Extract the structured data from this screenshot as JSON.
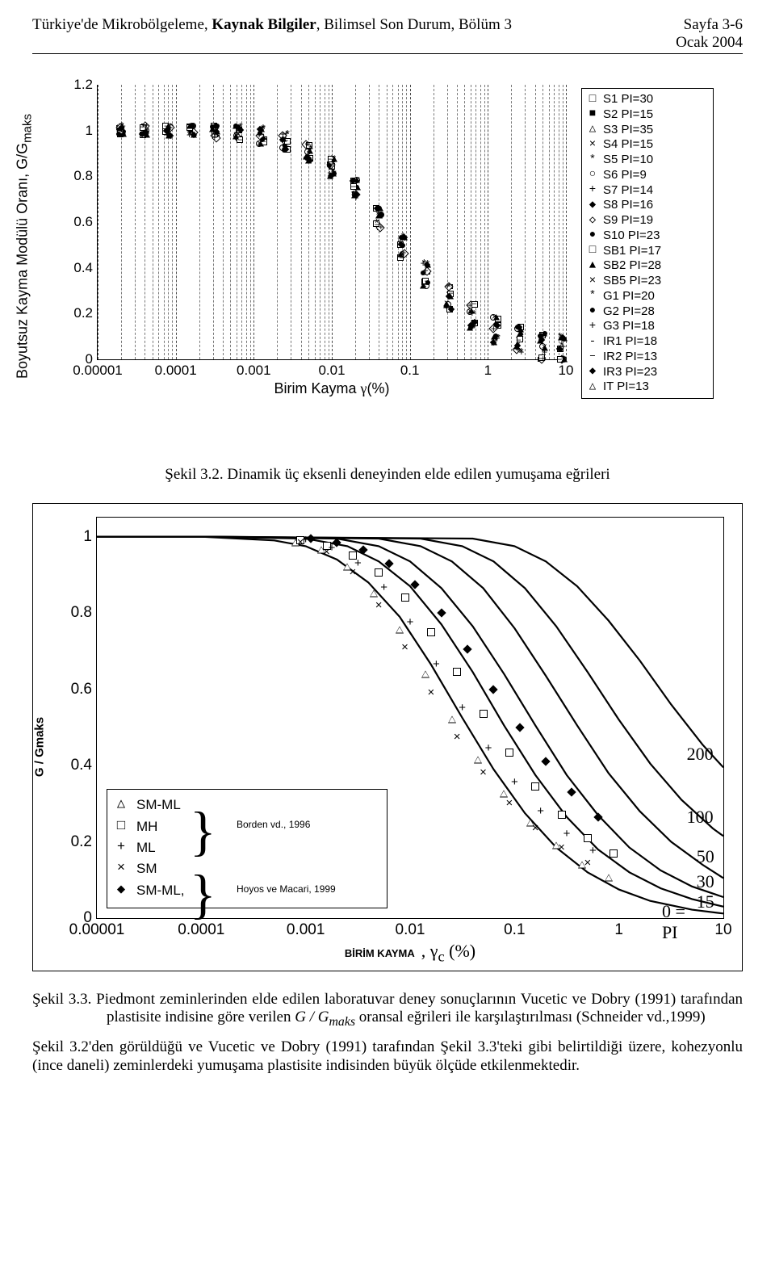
{
  "header": {
    "left_plain1": "Türkiye'de Mikrobölgeleme, ",
    "left_bold": "Kaynak Bilgiler",
    "left_plain2": ", Bilimsel Son Durum, Bölüm 3",
    "right_line1": "Sayfa 3-6",
    "right_line2": "Ocak 2004"
  },
  "chart1": {
    "type": "scatter-log",
    "ylabel_a": "Boyutsuz Kayma Modülü Oranı, G/G",
    "ylabel_sub": "maks",
    "xlabel_a": "Birim Kayma ",
    "xlabel_sym": "γ",
    "xlabel_b": "(%)",
    "ylim": [
      0,
      1.2
    ],
    "yticks": [
      0,
      0.2,
      0.4,
      0.6,
      0.8,
      1,
      1.2
    ],
    "ytick_labels": [
      "0",
      "0.2",
      "0.4",
      "0.6",
      "0.8",
      "1",
      "1.2"
    ],
    "xlim_log10": [
      -5,
      1
    ],
    "xticks_log10": [
      -5,
      -4,
      -3,
      -2,
      -1,
      0,
      1
    ],
    "xtick_labels": [
      "0.00001",
      "0.0001",
      "0.001",
      "0.01",
      "0.1",
      "1",
      "10"
    ],
    "grid_color": "#7a7a7a",
    "background_color": "#ffffff",
    "legend": [
      {
        "sym": "□",
        "label": "S1  PI=30"
      },
      {
        "sym": "■",
        "label": "S2  PI=15"
      },
      {
        "sym": "△",
        "label": "S3  PI=35"
      },
      {
        "sym": "×",
        "label": "S4  PI=15"
      },
      {
        "sym": "*",
        "label": "S5  PI=10"
      },
      {
        "sym": "○",
        "label": "S6  PI=9"
      },
      {
        "sym": "+",
        "label": "S7  PI=14"
      },
      {
        "sym": "◆",
        "label": "S8  PI=16"
      },
      {
        "sym": "◇",
        "label": "S9  PI=19"
      },
      {
        "sym": "●",
        "label": "S10 PI=23"
      },
      {
        "sym": "□",
        "label": "SB1 PI=17"
      },
      {
        "sym": "▲",
        "label": "SB2 PI=28"
      },
      {
        "sym": "×",
        "label": "SB5 PI=23"
      },
      {
        "sym": "*",
        "label": "G1  PI=20"
      },
      {
        "sym": "●",
        "label": "G2  PI=28"
      },
      {
        "sym": "+",
        "label": "G3  PI=18"
      },
      {
        "sym": "-",
        "label": "IR1 PI=18"
      },
      {
        "sym": "–",
        "label": "IR2 PI=13"
      },
      {
        "sym": "◆",
        "label": "IR3 PI=23"
      },
      {
        "sym": "△",
        "label": "IT PI=13"
      }
    ],
    "series_classes": [
      "square",
      "fsquare",
      "tri",
      "x",
      "star",
      "circ",
      "plus",
      "diam",
      "odiam",
      "fcirc",
      "square",
      "tri",
      "x",
      "star",
      "fcirc",
      "plus",
      "dash",
      "dash",
      "diam",
      "tri"
    ],
    "band_center": [
      [
        -4.7,
        1.0
      ],
      [
        -4.4,
        1.0
      ],
      [
        -4.1,
        1.0
      ],
      [
        -3.8,
        1.0
      ],
      [
        -3.5,
        0.995
      ],
      [
        -3.2,
        0.99
      ],
      [
        -2.9,
        0.975
      ],
      [
        -2.6,
        0.95
      ],
      [
        -2.3,
        0.905
      ],
      [
        -2.0,
        0.84
      ],
      [
        -1.7,
        0.745
      ],
      [
        -1.4,
        0.62
      ],
      [
        -1.1,
        0.49
      ],
      [
        -0.8,
        0.37
      ],
      [
        -0.5,
        0.27
      ],
      [
        -0.2,
        0.19
      ],
      [
        0.1,
        0.13
      ],
      [
        0.4,
        0.085
      ],
      [
        0.7,
        0.055
      ],
      [
        0.95,
        0.035
      ]
    ],
    "band_halfwidth": 0.075
  },
  "caption1_a": "Şekil 3.2. ",
  "caption1_b": "Dinamik üç eksenli deneyinden elde edilen yumuşama eğrileri",
  "chart2": {
    "type": "scatter+lines-log",
    "ylabel": "G / Gmaks",
    "ylim": [
      0,
      1.05
    ],
    "yticks": [
      0,
      0.2,
      0.4,
      0.6,
      0.8,
      1
    ],
    "ytick_labels": [
      "0",
      "0.2",
      "0.4",
      "0.6",
      "0.8",
      "1"
    ],
    "xlim_log10": [
      -5,
      1
    ],
    "xticks_log10": [
      -5,
      -4,
      -3,
      -2,
      -1,
      0,
      1
    ],
    "xtick_labels": [
      "0.00001",
      "0.0001",
      "0.001",
      "0.01",
      "0.1",
      "1",
      "10"
    ],
    "xlabel_bk": "BİRİM KAYMA",
    "xlabel_sep": ",",
    "xlabel_sym": "γ",
    "xlabel_sub": "c",
    "xlabel_unit": "(%)",
    "curve_stroke_width": 2.2,
    "curve_color": "#000000",
    "curves": {
      "PI0": [
        [
          -5,
          1.0
        ],
        [
          -4,
          1.0
        ],
        [
          -3.3,
          0.99
        ],
        [
          -3.0,
          0.975
        ],
        [
          -2.7,
          0.94
        ],
        [
          -2.4,
          0.88
        ],
        [
          -2.1,
          0.79
        ],
        [
          -1.8,
          0.665
        ],
        [
          -1.5,
          0.525
        ],
        [
          -1.2,
          0.39
        ],
        [
          -0.9,
          0.275
        ],
        [
          -0.6,
          0.185
        ],
        [
          -0.3,
          0.12
        ],
        [
          0.0,
          0.075
        ],
        [
          0.3,
          0.045
        ],
        [
          0.7,
          0.022
        ],
        [
          1.0,
          0.012
        ]
      ],
      "PI15": [
        [
          -5,
          1.0
        ],
        [
          -4,
          1.0
        ],
        [
          -3.0,
          0.995
        ],
        [
          -2.6,
          0.975
        ],
        [
          -2.3,
          0.935
        ],
        [
          -2.0,
          0.87
        ],
        [
          -1.7,
          0.77
        ],
        [
          -1.4,
          0.645
        ],
        [
          -1.1,
          0.505
        ],
        [
          -0.8,
          0.375
        ],
        [
          -0.5,
          0.265
        ],
        [
          -0.2,
          0.18
        ],
        [
          0.1,
          0.12
        ],
        [
          0.4,
          0.078
        ],
        [
          0.7,
          0.05
        ],
        [
          1.0,
          0.03
        ]
      ],
      "PI30": [
        [
          -5,
          1.0
        ],
        [
          -4,
          1.0
        ],
        [
          -2.7,
          0.995
        ],
        [
          -2.3,
          0.975
        ],
        [
          -2.0,
          0.935
        ],
        [
          -1.7,
          0.865
        ],
        [
          -1.4,
          0.765
        ],
        [
          -1.1,
          0.64
        ],
        [
          -0.8,
          0.505
        ],
        [
          -0.5,
          0.375
        ],
        [
          -0.2,
          0.27
        ],
        [
          0.1,
          0.185
        ],
        [
          0.4,
          0.125
        ],
        [
          0.7,
          0.083
        ],
        [
          1.0,
          0.055
        ]
      ],
      "PI50": [
        [
          -5,
          1.0
        ],
        [
          -4,
          1.0
        ],
        [
          -2.3,
          0.995
        ],
        [
          -1.9,
          0.975
        ],
        [
          -1.6,
          0.935
        ],
        [
          -1.3,
          0.865
        ],
        [
          -1.0,
          0.76
        ],
        [
          -0.7,
          0.635
        ],
        [
          -0.4,
          0.505
        ],
        [
          -0.1,
          0.38
        ],
        [
          0.2,
          0.28
        ],
        [
          0.5,
          0.2
        ],
        [
          0.8,
          0.14
        ],
        [
          1.0,
          0.105
        ]
      ],
      "PI100": [
        [
          -5,
          1.0
        ],
        [
          -4,
          1.0
        ],
        [
          -1.9,
          0.995
        ],
        [
          -1.5,
          0.975
        ],
        [
          -1.2,
          0.935
        ],
        [
          -0.9,
          0.865
        ],
        [
          -0.6,
          0.765
        ],
        [
          -0.3,
          0.645
        ],
        [
          0.0,
          0.52
        ],
        [
          0.3,
          0.405
        ],
        [
          0.6,
          0.31
        ],
        [
          0.9,
          0.235
        ],
        [
          1.0,
          0.215
        ]
      ],
      "PI200": [
        [
          -5,
          1.0
        ],
        [
          -4,
          1.0
        ],
        [
          -1.4,
          0.995
        ],
        [
          -1.0,
          0.975
        ],
        [
          -0.7,
          0.935
        ],
        [
          -0.4,
          0.87
        ],
        [
          -0.1,
          0.78
        ],
        [
          0.2,
          0.675
        ],
        [
          0.5,
          0.56
        ],
        [
          0.8,
          0.455
        ],
        [
          1.0,
          0.395
        ]
      ]
    },
    "pi_labels": [
      {
        "text": "200",
        "log10x": 0.93,
        "y": 0.43
      },
      {
        "text": "100",
        "log10x": 0.93,
        "y": 0.265
      },
      {
        "text": "50",
        "log10x": 0.93,
        "y": 0.16
      },
      {
        "text": "30",
        "log10x": 0.93,
        "y": 0.095
      },
      {
        "text": "15",
        "log10x": 0.93,
        "y": 0.042
      },
      {
        "text": "0 = PI",
        "log10x": 0.72,
        "y": -0.01
      }
    ],
    "legend2": {
      "items": [
        {
          "sym": "△",
          "label": "SM-ML"
        },
        {
          "sym": "□",
          "label": "MH"
        },
        {
          "sym": "+",
          "label": "ML"
        },
        {
          "sym": "×",
          "label": "SM"
        },
        {
          "sym": "◆",
          "label": "SM-ML,"
        }
      ],
      "ref1": "Borden vd., 1996",
      "ref2": "Hoyos ve Macari, 1999",
      "brace": "}"
    },
    "scatter_sets": {
      "SM-ML_tri": [
        [
          -3.1,
          0.985
        ],
        [
          -2.85,
          0.965
        ],
        [
          -2.6,
          0.92
        ],
        [
          -2.35,
          0.85
        ],
        [
          -2.1,
          0.755
        ],
        [
          -1.85,
          0.64
        ],
        [
          -1.6,
          0.52
        ],
        [
          -1.35,
          0.415
        ],
        [
          -1.1,
          0.325
        ],
        [
          -0.85,
          0.25
        ],
        [
          -0.6,
          0.19
        ],
        [
          -0.35,
          0.14
        ],
        [
          -0.1,
          0.105
        ]
      ],
      "MH_sq": [
        [
          -3.05,
          0.99
        ],
        [
          -2.8,
          0.975
        ],
        [
          -2.55,
          0.95
        ],
        [
          -2.3,
          0.905
        ],
        [
          -2.05,
          0.84
        ],
        [
          -1.8,
          0.75
        ],
        [
          -1.55,
          0.645
        ],
        [
          -1.3,
          0.535
        ],
        [
          -1.05,
          0.435
        ],
        [
          -0.8,
          0.345
        ],
        [
          -0.55,
          0.27
        ],
        [
          -0.3,
          0.21
        ],
        [
          -0.05,
          0.17
        ]
      ],
      "ML_plus": [
        [
          -3.0,
          0.99
        ],
        [
          -2.75,
          0.97
        ],
        [
          -2.5,
          0.93
        ],
        [
          -2.25,
          0.865
        ],
        [
          -2.0,
          0.775
        ],
        [
          -1.75,
          0.665
        ],
        [
          -1.5,
          0.55
        ],
        [
          -1.25,
          0.445
        ],
        [
          -1.0,
          0.355
        ],
        [
          -0.75,
          0.28
        ],
        [
          -0.5,
          0.22
        ],
        [
          -0.25,
          0.175
        ]
      ],
      "SM_x": [
        [
          -3.05,
          0.985
        ],
        [
          -2.8,
          0.96
        ],
        [
          -2.55,
          0.905
        ],
        [
          -2.3,
          0.82
        ],
        [
          -2.05,
          0.71
        ],
        [
          -1.8,
          0.59
        ],
        [
          -1.55,
          0.475
        ],
        [
          -1.3,
          0.38
        ],
        [
          -1.05,
          0.3
        ],
        [
          -0.8,
          0.235
        ],
        [
          -0.55,
          0.185
        ],
        [
          -0.3,
          0.145
        ]
      ],
      "SMML_fd": [
        [
          -2.95,
          0.995
        ],
        [
          -2.7,
          0.985
        ],
        [
          -2.45,
          0.965
        ],
        [
          -2.2,
          0.93
        ],
        [
          -1.95,
          0.875
        ],
        [
          -1.7,
          0.8
        ],
        [
          -1.45,
          0.705
        ],
        [
          -1.2,
          0.6
        ],
        [
          -0.95,
          0.5
        ],
        [
          -0.7,
          0.41
        ],
        [
          -0.45,
          0.33
        ],
        [
          -0.2,
          0.265
        ]
      ]
    }
  },
  "caption2_label": "Şekil 3.3. ",
  "caption2_text1": "Piedmont zeminlerinden elde edilen laboratuvar deney sonuçlarının Vucetic ve Dobry (1991) tarafından plastisite indisine göre verilen ",
  "caption2_it1": "G / G",
  "caption2_sub": "maks",
  "caption2_text2": " oransal eğrileri ile karşılaştırılması (Schneider vd.,1999)",
  "body_text": "Şekil 3.2'den görüldüğü ve Vucetic ve Dobry (1991) tarafından Şekil 3.3'teki gibi belirtildiği üzere, kohezyonlu (ince daneli) zeminlerdeki yumuşama plastisite indisinden büyük ölçüde etkilenmektedir."
}
